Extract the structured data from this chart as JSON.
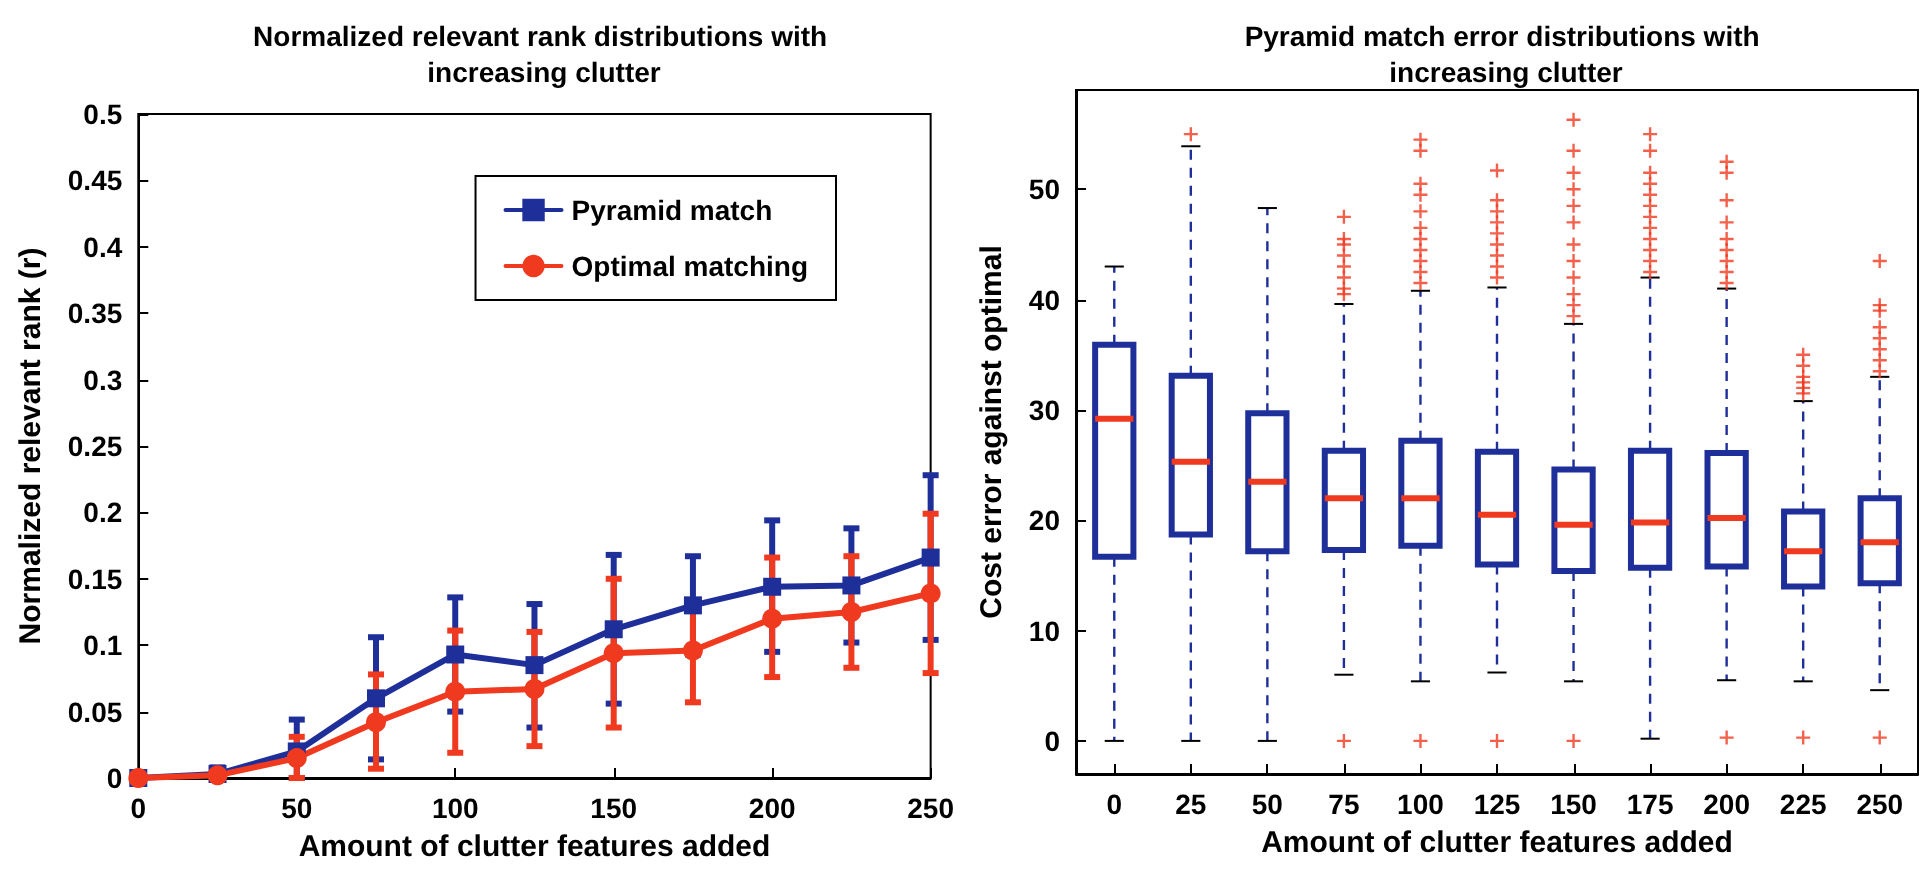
{
  "chart_data": [
    {
      "type": "line",
      "title": "Normalized relevant rank distributions with increasing clutter",
      "xlabel": "Amount of clutter features added",
      "ylabel": "Normalized relevant rank (r)",
      "xlim": [
        0,
        250
      ],
      "xticks": [
        0,
        50,
        100,
        150,
        200,
        250
      ],
      "ylim": [
        0,
        0.5
      ],
      "yticks": [
        0,
        0.05,
        0.1,
        0.15,
        0.2,
        0.25,
        0.3,
        0.35,
        0.4,
        0.45,
        0.5
      ],
      "legend": "top right",
      "line_style": "solid",
      "x": [
        0,
        25,
        50,
        75,
        100,
        125,
        150,
        175,
        200,
        225,
        250
      ],
      "series": [
        {
          "name": "Pyramid match",
          "color": "#1f2f9a",
          "marker": "square",
          "values": [
            0,
            0.003,
            0.02,
            0.06,
            0.093,
            0.085,
            0.112,
            0.13,
            0.144,
            0.145,
            0.166
          ],
          "errors": [
            null,
            [
              0,
              0.008
            ],
            [
              0,
              0.044
            ],
            [
              0.014,
              0.106
            ],
            [
              0.05,
              0.136
            ],
            [
              0.038,
              0.131
            ],
            [
              0.056,
              0.168
            ],
            [
              0.093,
              0.167
            ],
            [
              0.095,
              0.194
            ],
            [
              0.102,
              0.188
            ],
            [
              0.104,
              0.228
            ]
          ]
        },
        {
          "name": "Optimal matching",
          "color": "#f03a20",
          "marker": "circle",
          "values": [
            0,
            0.002,
            0.015,
            0.042,
            0.065,
            0.067,
            0.094,
            0.096,
            0.12,
            0.125,
            0.139
          ],
          "errors": [
            null,
            [
              0,
              0.005
            ],
            [
              0,
              0.031
            ],
            [
              0.007,
              0.078
            ],
            [
              0.019,
              0.111
            ],
            [
              0.024,
              0.11
            ],
            [
              0.038,
              0.15
            ],
            [
              0.057,
              0.134
            ],
            [
              0.076,
              0.166
            ],
            [
              0.083,
              0.167
            ],
            [
              0.079,
              0.199
            ]
          ]
        }
      ]
    },
    {
      "type": "box",
      "title": "Pyramid match error distributions with increasing clutter",
      "xlabel": "Amount of clutter features added",
      "ylabel": "Cost error against optimal",
      "categories": [
        "0",
        "25",
        "50",
        "75",
        "100",
        "125",
        "150",
        "175",
        "200",
        "225",
        "250"
      ],
      "ylim": [
        -3,
        59
      ],
      "yticks": [
        0,
        10,
        20,
        30,
        40,
        50
      ],
      "series": [
        {
          "color": "#1f2f9a",
          "boxes": [
            {
              "low": 0,
              "q1": 16.7,
              "median": 29.2,
              "q3": 35.9,
              "high": 43
            },
            {
              "low": 0,
              "q1": 18.7,
              "median": 25.3,
              "q3": 33.1,
              "high": 53.9,
              "outliers": [
                55
              ]
            },
            {
              "low": 0,
              "q1": 17.2,
              "median": 23.5,
              "q3": 29.7,
              "high": 48.3
            },
            {
              "low": 6,
              "q1": 17.3,
              "median": 22,
              "q3": 26.3,
              "high": 39.6,
              "outliers": [
                0,
                40.5,
                41,
                42,
                43,
                44,
                45,
                45.5,
                47.5
              ]
            },
            {
              "low": 5.4,
              "q1": 17.7,
              "median": 22,
              "q3": 27.2,
              "high": 40.8,
              "outliers": [
                0,
                41.5,
                42.5,
                43.5,
                44.5,
                45.5,
                46.5,
                48,
                49.5,
                50.5,
                53.5,
                54.5
              ]
            },
            {
              "low": 6.2,
              "q1": 16,
              "median": 20.5,
              "q3": 26.2,
              "high": 41.1,
              "outliers": [
                0,
                42,
                43,
                44,
                45,
                46,
                47,
                48,
                49,
                51.7
              ]
            },
            {
              "low": 5.4,
              "q1": 15.4,
              "median": 19.6,
              "q3": 24.6,
              "high": 37.8,
              "outliers": [
                0,
                38.5,
                39.5,
                40.5,
                42,
                43.5,
                45,
                47,
                48.5,
                50,
                51.5,
                53.5,
                56.3
              ]
            },
            {
              "low": 0.2,
              "q1": 15.7,
              "median": 19.8,
              "q3": 26.3,
              "high": 42,
              "outliers": [
                42.5,
                43.5,
                44.5,
                45.5,
                46.5,
                47.5,
                48.5,
                49.5,
                50.5,
                51.5,
                53.5,
                55
              ]
            },
            {
              "low": 5.5,
              "q1": 15.8,
              "median": 20.2,
              "q3": 26.1,
              "high": 41,
              "outliers": [
                0.3,
                41.5,
                42.5,
                43.5,
                44.5,
                45.5,
                47,
                49,
                51.5,
                52.5
              ]
            },
            {
              "low": 5.4,
              "q1": 14,
              "median": 17.2,
              "q3": 20.8,
              "high": 30.8,
              "outliers": [
                0.3,
                31.5,
                32,
                32.5,
                33,
                34,
                35
              ]
            },
            {
              "low": 4.6,
              "q1": 14.3,
              "median": 18,
              "q3": 22,
              "high": 33,
              "outliers": [
                0.3,
                33.5,
                34.5,
                35.5,
                36.5,
                37.5,
                39,
                39.5,
                43.5
              ]
            }
          ]
        }
      ]
    }
  ]
}
